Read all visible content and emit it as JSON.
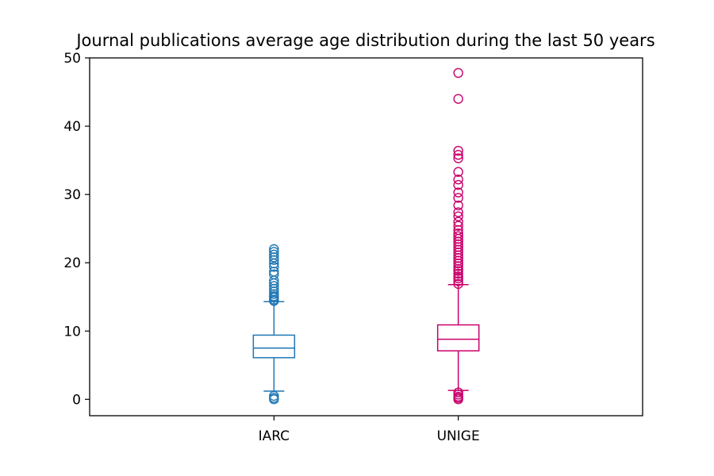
{
  "chart_data": {
    "type": "box",
    "title": "Journal publications average age distribution during the last 50 years",
    "xlabel": "",
    "ylabel": "",
    "ylim": [
      -2.4,
      50
    ],
    "yticks": [
      0,
      10,
      20,
      30,
      40,
      50
    ],
    "grid": false,
    "categories": [
      "IARC",
      "UNIGE"
    ],
    "series": [
      {
        "category": "IARC",
        "color": "#1f77b4",
        "whisker_low": 1.2,
        "q1": 6.1,
        "median": 7.5,
        "q3": 9.4,
        "whisker_high": 14.3,
        "outliers": [
          0.0,
          0.2,
          0.5,
          14.4,
          14.6,
          14.9,
          15.1,
          15.4,
          15.8,
          16.2,
          16.6,
          17.0,
          17.4,
          18.3,
          18.7,
          19.4,
          19.9,
          20.4,
          20.8,
          21.2,
          21.6,
          22.0
        ]
      },
      {
        "category": "UNIGE",
        "color": "#c9006b",
        "whisker_low": 1.3,
        "q1": 7.1,
        "median": 8.8,
        "q3": 10.9,
        "whisker_high": 16.8,
        "outliers": [
          0.0,
          0.2,
          0.4,
          0.7,
          1.0,
          16.9,
          17.3,
          17.7,
          18.0,
          18.4,
          18.8,
          19.1,
          19.5,
          19.9,
          20.3,
          20.7,
          21.1,
          21.5,
          21.9,
          22.3,
          22.7,
          23.1,
          23.5,
          23.9,
          24.3,
          24.8,
          25.4,
          26.0,
          26.8,
          27.4,
          28.4,
          29.5,
          30.3,
          31.4,
          32.2,
          33.3,
          35.3,
          35.8,
          36.4,
          44.0,
          47.8
        ]
      }
    ]
  }
}
